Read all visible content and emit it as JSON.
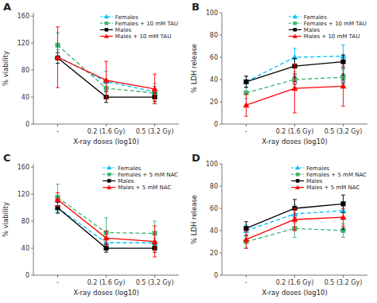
{
  "chart_data": [
    {
      "type": "line",
      "title": "A",
      "xlabel": "X-ray doses (log10)",
      "ylabel": "% viability",
      "x": [
        -0.1,
        0.2,
        0.5
      ],
      "xlim": [
        -0.25,
        0.65
      ],
      "xticks": [
        {
          "value": -0.1,
          "label": "-"
        },
        {
          "value": 0.2,
          "label": "0.2 (1.6 Gy)"
        },
        {
          "value": 0.5,
          "label": "0.5 (3.2 Gy)"
        }
      ],
      "ylim": [
        0,
        165
      ],
      "yticks": [
        0,
        40,
        80,
        120,
        160
      ],
      "grid": false,
      "legend": "upper right",
      "series": [
        {
          "name": "Females",
          "color": "#00BFFF",
          "line_style": "dashed",
          "marker": "triangle",
          "values": [
            100,
            63,
            48
          ],
          "errors": [
            10,
            15,
            8
          ]
        },
        {
          "name": "Females + 10 mM TAU",
          "color": "#3CB371",
          "line_style": "dashed",
          "marker": "square",
          "values": [
            117,
            53,
            46
          ],
          "errors": [
            18,
            12,
            14
          ]
        },
        {
          "name": "Males",
          "color": "#000000",
          "line_style": "solid",
          "marker": "square",
          "values": [
            98,
            40,
            40
          ],
          "errors": [
            8,
            8,
            6
          ]
        },
        {
          "name": "Males + 10 mM TAU",
          "color": "#FF0000",
          "line_style": "solid",
          "marker": "triangle",
          "values": [
            99,
            65,
            52
          ],
          "errors": [
            45,
            28,
            22
          ]
        }
      ]
    },
    {
      "type": "line",
      "title": "B",
      "xlabel": "X-ray doses (log10)",
      "ylabel": "% LDH release",
      "x": [
        -0.1,
        0.2,
        0.5
      ],
      "xlim": [
        -0.25,
        0.65
      ],
      "xticks": [
        {
          "value": -0.1,
          "label": "-"
        },
        {
          "value": 0.2,
          "label": "0.2 (1.6 Gy)"
        },
        {
          "value": 0.5,
          "label": "0.5 (3.2 Gy)"
        }
      ],
      "ylim": [
        0,
        100
      ],
      "yticks": [
        0,
        20,
        40,
        60,
        80,
        100
      ],
      "grid": false,
      "legend": "upper right",
      "series": [
        {
          "name": "Females",
          "color": "#00BFFF",
          "line_style": "dashed",
          "marker": "triangle",
          "values": [
            38,
            60,
            61
          ],
          "errors": [
            5,
            8,
            10
          ]
        },
        {
          "name": "Females + 10 mM TAU",
          "color": "#3CB371",
          "line_style": "dashed",
          "marker": "square",
          "values": [
            28,
            40,
            42
          ],
          "errors": [
            5,
            7,
            6
          ]
        },
        {
          "name": "Males",
          "color": "#000000",
          "line_style": "solid",
          "marker": "square",
          "values": [
            38,
            52,
            56
          ],
          "errors": [
            5,
            7,
            6
          ]
        },
        {
          "name": "Males + 10 mM TAU",
          "color": "#FF0000",
          "line_style": "solid",
          "marker": "triangle",
          "values": [
            17,
            32,
            34
          ],
          "errors": [
            10,
            22,
            18
          ]
        }
      ],
      "annotations": [
        {
          "text": "*",
          "x": 0.2,
          "y": 43
        },
        {
          "text": "*",
          "x": 0.5,
          "y": 45
        },
        {
          "text": "O",
          "x": 0.2,
          "y": 34
        },
        {
          "text": "O",
          "x": 0.5,
          "y": 36
        }
      ]
    },
    {
      "type": "line",
      "title": "C",
      "xlabel": "X-ray doses (log10)",
      "ylabel": "% viability",
      "x": [
        -0.1,
        0.2,
        0.5
      ],
      "xlim": [
        -0.25,
        0.65
      ],
      "xticks": [
        {
          "value": -0.1,
          "label": "-"
        },
        {
          "value": 0.2,
          "label": "0.2 (1.6 Gy)"
        },
        {
          "value": 0.5,
          "label": "0.5 (3.2 Gy)"
        }
      ],
      "ylim": [
        0,
        165
      ],
      "yticks": [
        0,
        40,
        80,
        120,
        160
      ],
      "grid": false,
      "legend": "upper right",
      "series": [
        {
          "name": "Females",
          "color": "#00BFFF",
          "line_style": "dashed",
          "marker": "triangle",
          "values": [
            100,
            48,
            48
          ],
          "errors": [
            8,
            8,
            7
          ]
        },
        {
          "name": "Females + 5 mM NAC",
          "color": "#3CB371",
          "line_style": "dashed",
          "marker": "square",
          "values": [
            115,
            63,
            62
          ],
          "errors": [
            20,
            22,
            18
          ]
        },
        {
          "name": "Males",
          "color": "#000000",
          "line_style": "solid",
          "marker": "square",
          "values": [
            100,
            40,
            40
          ],
          "errors": [
            8,
            6,
            6
          ]
        },
        {
          "name": "Males + 5 mM NAC",
          "color": "#FF0000",
          "line_style": "solid",
          "marker": "triangle",
          "values": [
            112,
            55,
            50
          ],
          "errors": [
            10,
            10,
            23
          ]
        }
      ]
    },
    {
      "type": "line",
      "title": "D",
      "xlabel": "X-ray doses (log10)",
      "ylabel": "% LDH release",
      "x": [
        -0.1,
        0.2,
        0.5
      ],
      "xlim": [
        -0.25,
        0.65
      ],
      "xticks": [
        {
          "value": -0.1,
          "label": "-"
        },
        {
          "value": 0.2,
          "label": "0.2 (1.6 Gy)"
        },
        {
          "value": 0.5,
          "label": "0.5 (3.2 Gy)"
        }
      ],
      "ylim": [
        0,
        100
      ],
      "yticks": [
        0,
        20,
        40,
        60,
        80,
        100
      ],
      "grid": false,
      "legend": "upper right",
      "series": [
        {
          "name": "Females",
          "color": "#00BFFF",
          "line_style": "dashed",
          "marker": "triangle",
          "values": [
            40,
            55,
            58
          ],
          "errors": [
            5,
            8,
            8
          ]
        },
        {
          "name": "Females + 5 mM NAC",
          "color": "#3CB371",
          "line_style": "dashed",
          "marker": "square",
          "values": [
            30,
            42,
            40
          ],
          "errors": [
            5,
            8,
            6
          ]
        },
        {
          "name": "Males",
          "color": "#000000",
          "line_style": "solid",
          "marker": "square",
          "values": [
            42,
            60,
            64
          ],
          "errors": [
            6,
            8,
            8
          ]
        },
        {
          "name": "Males + 5 mM NAC",
          "color": "#FF0000",
          "line_style": "solid",
          "marker": "triangle",
          "values": [
            32,
            50,
            52
          ],
          "errors": [
            8,
            10,
            8
          ]
        }
      ],
      "annotations": [
        {
          "text": "*",
          "x": 0.5,
          "y": 42
        }
      ]
    }
  ]
}
